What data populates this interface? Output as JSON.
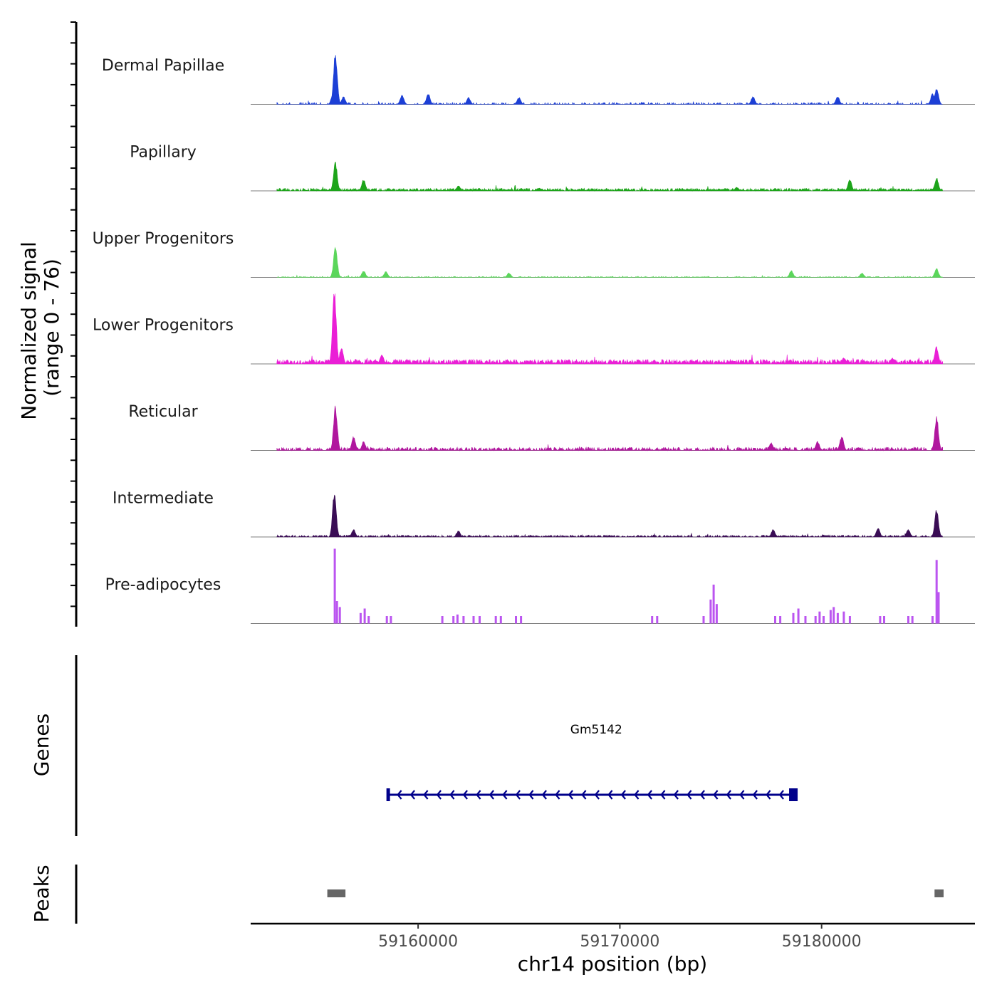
{
  "chart_data": {
    "type": "area",
    "title": "",
    "ylabel_line1": "Normalized signal",
    "ylabel_line2": "(range 0 - 76)",
    "ylim": [
      0,
      76
    ],
    "xlabel": "chr14 position (bp)",
    "xlim": [
      59151700,
      59187600
    ],
    "x_ticks": [
      59160000,
      59170000,
      59180000
    ],
    "x_tick_labels": [
      "59160000",
      "59170000",
      "59180000"
    ],
    "data_range": [
      59153000,
      59186000
    ],
    "tracks": [
      {
        "name": "Dermal Papillae",
        "color": "#1c3fd6",
        "baseline": 1.5,
        "density": 0.32,
        "peaks": [
          [
            59155900,
            70
          ],
          [
            59155800,
            18
          ],
          [
            59156300,
            10
          ],
          [
            59159200,
            12
          ],
          [
            59160500,
            14
          ],
          [
            59162500,
            9
          ],
          [
            59165000,
            9
          ],
          [
            59176600,
            10
          ],
          [
            59180800,
            10
          ],
          [
            59185700,
            22
          ],
          [
            59185500,
            14
          ]
        ]
      },
      {
        "name": "Papillary",
        "color": "#1da41a",
        "baseline": 2.0,
        "density": 0.75,
        "peaks": [
          [
            59155900,
            38
          ],
          [
            59157300,
            15
          ],
          [
            59162000,
            7
          ],
          [
            59181400,
            15
          ],
          [
            59185700,
            17
          ],
          [
            59166000,
            4
          ],
          [
            59175800,
            5
          ]
        ]
      },
      {
        "name": "Upper Progenitors",
        "color": "#5bd65b",
        "baseline": 0.8,
        "density": 0.45,
        "peaks": [
          [
            59155900,
            40
          ],
          [
            59157300,
            9
          ],
          [
            59158400,
            8
          ],
          [
            59164500,
            6
          ],
          [
            59178500,
            9
          ],
          [
            59185700,
            12
          ],
          [
            59182000,
            6
          ]
        ]
      },
      {
        "name": "Lower Progenitors",
        "color": "#ea1fd6",
        "baseline": 3.5,
        "density": 0.85,
        "peaks": [
          [
            59155850,
            100
          ],
          [
            59156200,
            22
          ],
          [
            59158200,
            12
          ],
          [
            59181100,
            8
          ],
          [
            59185700,
            23
          ],
          [
            59183500,
            8
          ]
        ]
      },
      {
        "name": "Reticular",
        "color": "#b0179e",
        "baseline": 2.5,
        "density": 0.6,
        "peaks": [
          [
            59155900,
            60
          ],
          [
            59156800,
            18
          ],
          [
            59157300,
            12
          ],
          [
            59181000,
            19
          ],
          [
            59185700,
            44
          ],
          [
            59179800,
            12
          ],
          [
            59177500,
            10
          ]
        ]
      },
      {
        "name": "Intermediate",
        "color": "#3a0d55",
        "baseline": 1.5,
        "density": 0.55,
        "peaks": [
          [
            59155850,
            60
          ],
          [
            59156800,
            10
          ],
          [
            59162000,
            8
          ],
          [
            59182800,
            12
          ],
          [
            59185700,
            37
          ],
          [
            59184300,
            10
          ],
          [
            59177600,
            10
          ]
        ]
      },
      {
        "name": "Pre-adipocytes",
        "color": "#bb55f0",
        "baseline": 0,
        "density": 0.0,
        "spikes": [
          [
            59155870,
            100
          ],
          [
            59155980,
            30
          ],
          [
            59156120,
            22
          ],
          [
            59157150,
            14
          ],
          [
            59157350,
            20
          ],
          [
            59157550,
            10
          ],
          [
            59158450,
            10
          ],
          [
            59158650,
            10
          ],
          [
            59161200,
            10
          ],
          [
            59161750,
            10
          ],
          [
            59161950,
            12
          ],
          [
            59162250,
            10
          ],
          [
            59162750,
            10
          ],
          [
            59163050,
            10
          ],
          [
            59163850,
            10
          ],
          [
            59164100,
            10
          ],
          [
            59164850,
            10
          ],
          [
            59165100,
            10
          ],
          [
            59171600,
            10
          ],
          [
            59171850,
            10
          ],
          [
            59174150,
            10
          ],
          [
            59174500,
            32
          ],
          [
            59174650,
            52
          ],
          [
            59174800,
            26
          ],
          [
            59177700,
            10
          ],
          [
            59177950,
            10
          ],
          [
            59178600,
            14
          ],
          [
            59178850,
            20
          ],
          [
            59179200,
            10
          ],
          [
            59179700,
            10
          ],
          [
            59179900,
            16
          ],
          [
            59180100,
            10
          ],
          [
            59180450,
            18
          ],
          [
            59180600,
            22
          ],
          [
            59180800,
            14
          ],
          [
            59181100,
            16
          ],
          [
            59181400,
            10
          ],
          [
            59182900,
            10
          ],
          [
            59183100,
            10
          ],
          [
            59184300,
            10
          ],
          [
            59184500,
            10
          ],
          [
            59185500,
            10
          ],
          [
            59185700,
            85
          ],
          [
            59185800,
            42
          ]
        ]
      }
    ],
    "genes": {
      "panel_label": "Genes",
      "items": [
        {
          "name": "Gm5142",
          "start": 59158500,
          "end": 59178600,
          "strand": "-",
          "color": "#00008b"
        }
      ]
    },
    "peaks": {
      "panel_label": "Peaks",
      "color": "#666666",
      "regions": [
        [
          59155500,
          59156400
        ],
        [
          59185600,
          59186050
        ]
      ]
    }
  }
}
